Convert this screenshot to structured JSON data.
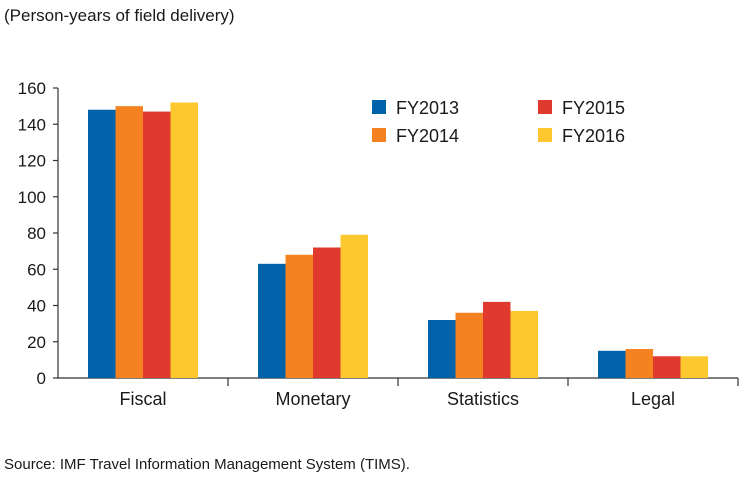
{
  "chart_data": {
    "type": "bar",
    "title": "",
    "ylabel": "(Person-years of field delivery)",
    "xlabel": "",
    "categories": [
      "Fiscal",
      "Monetary",
      "Statistics",
      "Legal"
    ],
    "series": [
      {
        "name": "FY2013",
        "color": "#0062a8",
        "values": [
          148,
          63,
          32,
          15
        ]
      },
      {
        "name": "FY2014",
        "color": "#f58220",
        "values": [
          150,
          68,
          36,
          16
        ]
      },
      {
        "name": "FY2015",
        "color": "#e03a2e",
        "values": [
          147,
          72,
          42,
          12
        ]
      },
      {
        "name": "FY2016",
        "color": "#fdc82f",
        "values": [
          152,
          79,
          37,
          12
        ]
      }
    ],
    "ylim": [
      0,
      160
    ],
    "yticks": [
      0,
      20,
      40,
      60,
      80,
      100,
      120,
      140,
      160
    ],
    "grid": false,
    "legend_position": "top-right"
  },
  "source": "Source: IMF Travel Information Management System (TIMS)."
}
